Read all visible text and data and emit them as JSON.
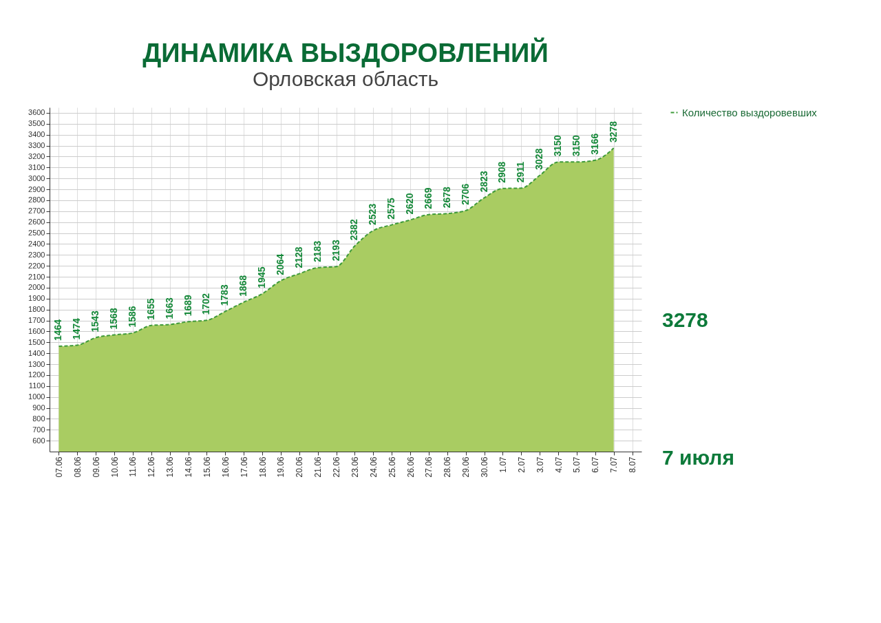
{
  "chart_data": {
    "type": "area",
    "title": "ДИНАМИКА ВЫЗДОРОВЛЕНИЙ",
    "subtitle": "Орловская область",
    "categories": [
      "07.06",
      "08.06",
      "09.06",
      "10.06",
      "11.06",
      "12.06",
      "13.06",
      "14.06",
      "15.06",
      "16.06",
      "17.06",
      "18.06",
      "19.06",
      "20.06",
      "21.06",
      "22.06",
      "23.06",
      "24.06",
      "25.06",
      "26.06",
      "27.06",
      "28.06",
      "29.06",
      "30.06",
      "1.07",
      "2.07",
      "3.07",
      "4.07",
      "5.07",
      "6.07",
      "7.07",
      "8.07"
    ],
    "series": [
      {
        "name": "Количество выздоровевших",
        "color": "#a9cc62",
        "values": [
          1464,
          1474,
          1543,
          1568,
          1586,
          1655,
          1663,
          1689,
          1702,
          1783,
          1868,
          1945,
          2064,
          2128,
          2183,
          2193,
          2382,
          2523,
          2575,
          2620,
          2669,
          2678,
          2706,
          2823,
          2908,
          2911,
          3028,
          3150,
          3150,
          3166,
          3278,
          null
        ]
      }
    ],
    "ylim": [
      500,
      3650
    ],
    "yticks": [
      600,
      700,
      800,
      900,
      1000,
      1100,
      1200,
      1300,
      1400,
      1500,
      1600,
      1700,
      1800,
      1900,
      2000,
      2100,
      2200,
      2300,
      2400,
      2500,
      2600,
      2700,
      2800,
      2900,
      3000,
      3100,
      3200,
      3300,
      3400,
      3500,
      3600
    ],
    "grid": true,
    "legend": "right",
    "line_style": "dashed",
    "data_labels": true,
    "annotations": [
      "3278",
      "7 июля"
    ]
  }
}
